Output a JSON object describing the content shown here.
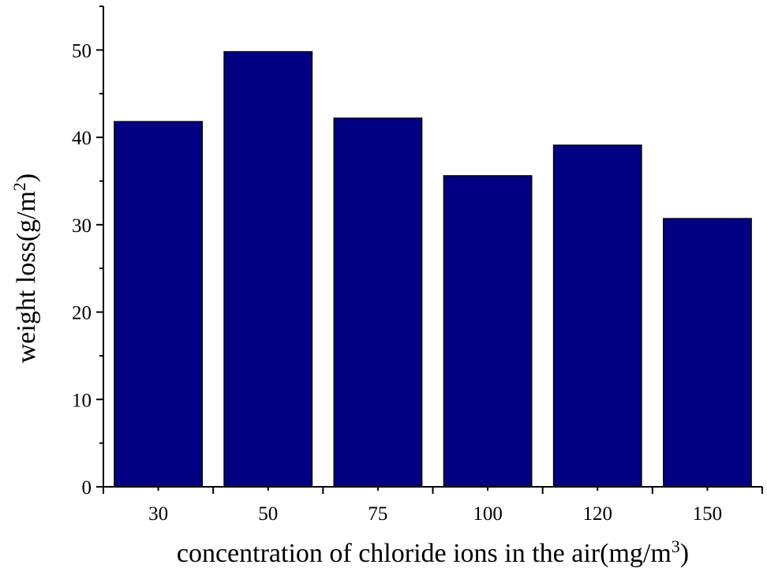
{
  "chart_data": {
    "type": "bar",
    "categories": [
      "30",
      "50",
      "75",
      "100",
      "120",
      "150"
    ],
    "values": [
      41.8,
      49.8,
      42.2,
      35.6,
      39.1,
      30.7
    ],
    "title": "",
    "xlabel": {
      "text": "concentration of chloride ions in the air(mg/m",
      "sup": "3",
      "suffix": ")"
    },
    "ylabel": {
      "text": "weight loss(g/m",
      "sup": "2",
      "suffix": ")"
    },
    "ylim": [
      0,
      55
    ],
    "yticks": [
      0,
      10,
      20,
      30,
      40,
      50
    ],
    "grid": false,
    "bar_color": "#000080"
  }
}
